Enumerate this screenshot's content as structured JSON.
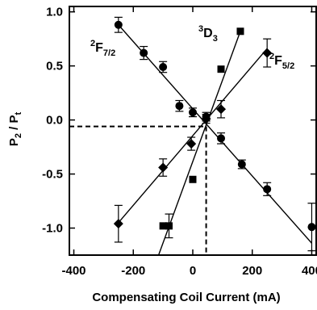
{
  "chart_data": {
    "type": "scatter",
    "title": "",
    "xlabel": "Compensating Coil Current (mA)",
    "ylabel": "P2 / Pt",
    "ylabel_parts": {
      "main": "P",
      "sub1": "2",
      "sep": " / P",
      "sub2": "t"
    },
    "xlim": [
      -415,
      415
    ],
    "ylim": [
      -1.25,
      1.05
    ],
    "x_ticks": [
      -400,
      -200,
      0,
      200,
      400
    ],
    "x_tick_labels": [
      "-400",
      "-200",
      "0",
      "200",
      "400"
    ],
    "y_ticks": [
      1.0,
      0.5,
      0.0,
      -0.5,
      -1.0
    ],
    "y_tick_labels": [
      "1.0",
      "0.5",
      "0.0",
      "-0.5",
      "-1.0"
    ],
    "grid": false,
    "series": [
      {
        "name": "2F7/2",
        "label": {
          "sup": "2",
          "main": "F",
          "sub": "7/2"
        },
        "marker": "circle",
        "points": [
          {
            "x": -250,
            "y": 0.88,
            "err": 0.07
          },
          {
            "x": -165,
            "y": 0.62,
            "err": 0.06
          },
          {
            "x": -100,
            "y": 0.49,
            "err": 0.05
          },
          {
            "x": -45,
            "y": 0.13,
            "err": 0.05
          },
          {
            "x": 0,
            "y": 0.07,
            "err": 0.04
          },
          {
            "x": 45,
            "y": 0.03,
            "err": 0.04
          },
          {
            "x": 95,
            "y": -0.17,
            "err": 0.05
          },
          {
            "x": 165,
            "y": -0.41,
            "err": 0.04
          },
          {
            "x": 250,
            "y": -0.64,
            "err": 0.06
          },
          {
            "x": 400,
            "y": -0.99,
            "err": 0.22
          }
        ],
        "fit": {
          "x1": -250,
          "y1": 0.88,
          "x2": 400,
          "y2": -1.14
        }
      },
      {
        "name": "2F5/2",
        "label": {
          "sup": "2",
          "main": "F",
          "sub": "5/2"
        },
        "marker": "diamond",
        "points": [
          {
            "x": -250,
            "y": -0.96,
            "err": 0.17
          },
          {
            "x": -100,
            "y": -0.44,
            "err": 0.08
          },
          {
            "x": -5,
            "y": -0.22,
            "err": 0.06
          },
          {
            "x": 45,
            "y": 0.01,
            "err": 0.04
          },
          {
            "x": 95,
            "y": 0.1,
            "err": 0.08
          },
          {
            "x": 250,
            "y": 0.62,
            "err": 0.13
          }
        ],
        "fit": {
          "x1": -250,
          "y1": -0.95,
          "x2": 250,
          "y2": 0.66
        }
      },
      {
        "name": "3D3",
        "label": {
          "sup": "3",
          "main": "D",
          "sub": "3"
        },
        "marker": "square",
        "points": [
          {
            "x": -100,
            "y": -0.98,
            "err": 0
          },
          {
            "x": -80,
            "y": -0.98,
            "err": 0.11
          },
          {
            "x": 0,
            "y": -0.55,
            "err": 0
          },
          {
            "x": 45,
            "y": 0.02,
            "err": 0.03
          },
          {
            "x": 95,
            "y": 0.47,
            "err": 0
          },
          {
            "x": 160,
            "y": 0.82,
            "err": 0
          }
        ],
        "fit": {
          "x1": -115,
          "y1": -1.25,
          "x2": 160,
          "y2": 0.82
        }
      }
    ],
    "reference_lines": {
      "x": 45,
      "y": -0.06
    }
  }
}
